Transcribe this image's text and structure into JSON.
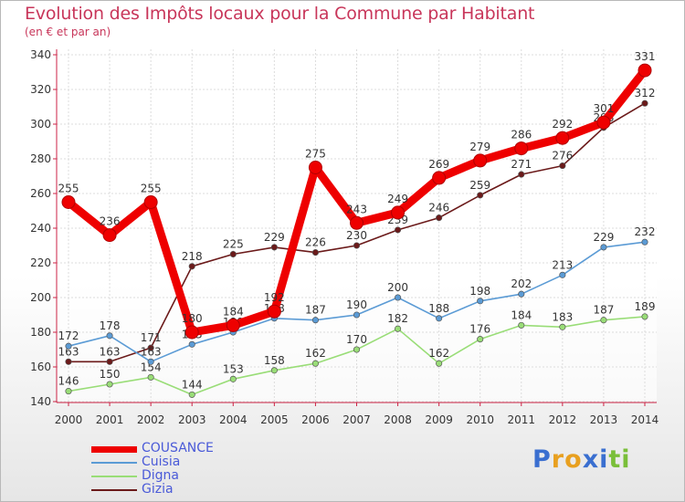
{
  "chart_data": {
    "type": "line",
    "title": "Evolution des Impôts locaux pour la Commune par Habitant",
    "subtitle": "(en € et par an)",
    "x": [
      "2000",
      "2001",
      "2002",
      "2003",
      "2004",
      "2005",
      "2006",
      "2007",
      "2008",
      "2009",
      "2010",
      "2011",
      "2012",
      "2013",
      "2014"
    ],
    "ylim": [
      140,
      340
    ],
    "yticks": [
      140,
      160,
      180,
      200,
      220,
      240,
      260,
      280,
      300,
      320,
      340
    ],
    "grid": true,
    "legend_position": "bottom-left",
    "series": [
      {
        "name": "COUSANCE",
        "color": "#ee0000",
        "values": [
          255,
          236,
          255,
          180,
          184,
          192,
          275,
          243,
          249,
          269,
          279,
          286,
          292,
          301,
          331
        ]
      },
      {
        "name": "Cuisia",
        "color": "#5b9bd5",
        "values": [
          172,
          178,
          163,
          173,
          180,
          188,
          187,
          190,
          200,
          188,
          198,
          202,
          213,
          229,
          232
        ]
      },
      {
        "name": "Digna",
        "color": "#99dd77",
        "values": [
          146,
          150,
          154,
          144,
          153,
          158,
          162,
          170,
          182,
          162,
          176,
          184,
          183,
          187,
          189
        ]
      },
      {
        "name": "Gizia",
        "color": "#6b1a1a",
        "values": [
          163,
          163,
          171,
          218,
          225,
          229,
          226,
          230,
          239,
          246,
          259,
          271,
          276,
          298,
          312
        ]
      }
    ]
  },
  "branding": {
    "logo_text": "Proxiti",
    "logo_letters": [
      "P",
      "r",
      "o",
      "x",
      "i",
      "t",
      "i"
    ],
    "logo_colors": [
      "#3a6fd0",
      "#e8a020",
      "#e8a020",
      "#3a6fd0",
      "#3a6fd0",
      "#7abf3a",
      "#7abf3a"
    ]
  }
}
